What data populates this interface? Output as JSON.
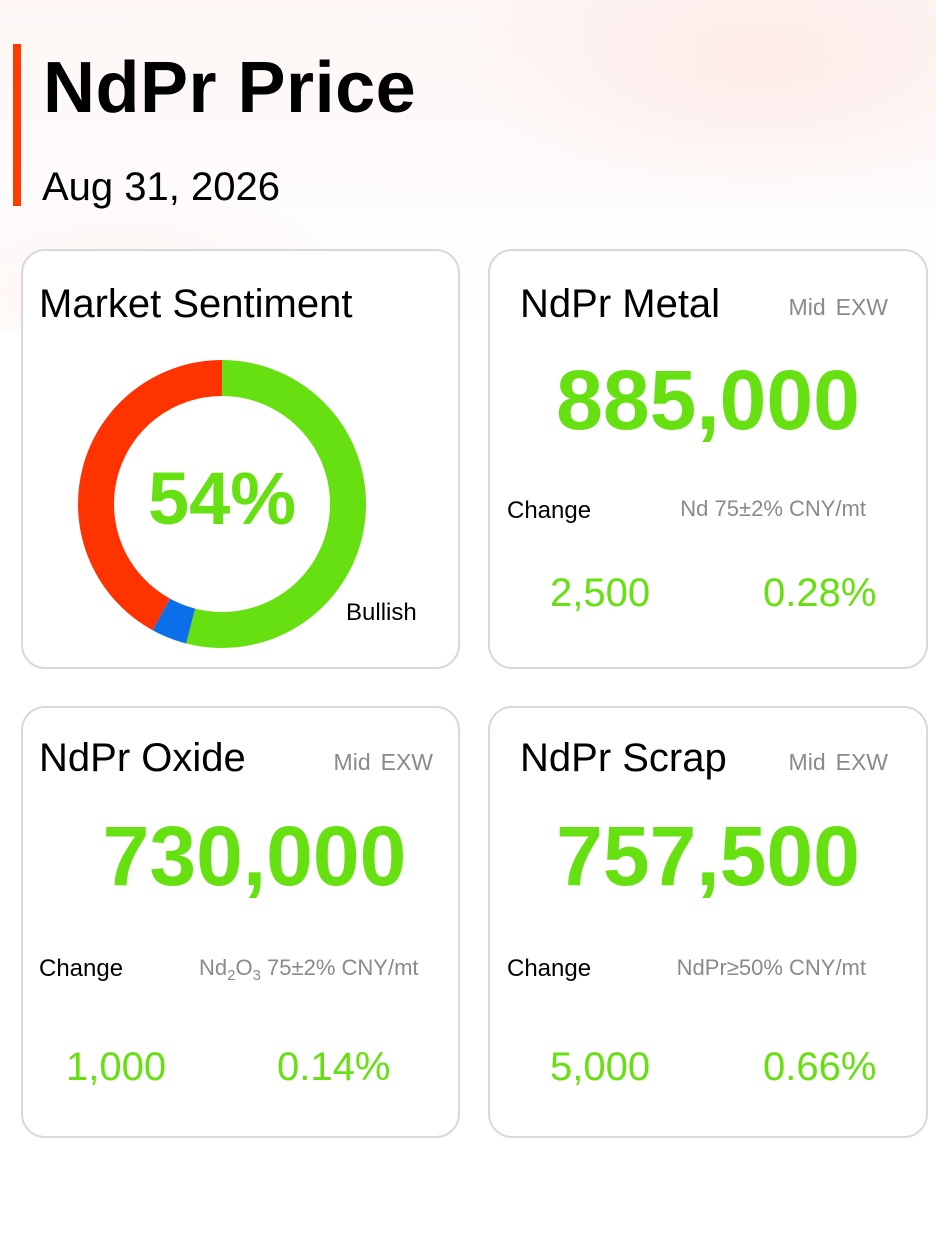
{
  "header": {
    "title": "NdPr Price",
    "date": "Aug 31, 2026"
  },
  "colors": {
    "accent": "#ff3c00",
    "positive": "#66e011",
    "bearish": "#ff3300",
    "neutral": "#0a6fe8",
    "muted": "#8a8a8a"
  },
  "sentiment": {
    "title": "Market Sentiment",
    "percent_label": "54%",
    "label": "Bullish",
    "breakdown": {
      "bullish_pct": 54,
      "neutral_pct": 4,
      "bearish_pct": 42
    }
  },
  "metal": {
    "title": "NdPr Metal",
    "mid": "Mid",
    "basis": "EXW",
    "price": "885,000",
    "change_label": "Change",
    "spec": "Nd 75±2% CNY/mt",
    "change_abs": "2,500",
    "change_pct": "0.28%"
  },
  "oxide": {
    "title": "NdPr Oxide",
    "mid": "Mid",
    "basis": "EXW",
    "price": "730,000",
    "change_label": "Change",
    "spec_prefix": "Nd",
    "spec_sub1": "2",
    "spec_mid": "O",
    "spec_sub2": "3",
    "spec_rest": " 75±2% CNY/mt",
    "change_abs": "1,000",
    "change_pct": "0.14%"
  },
  "scrap": {
    "title": "NdPr Scrap",
    "mid": "Mid",
    "basis": "EXW",
    "price": "757,500",
    "change_label": "Change",
    "spec": "NdPr≥50% CNY/mt",
    "change_abs": "5,000",
    "change_pct": "0.66%"
  }
}
